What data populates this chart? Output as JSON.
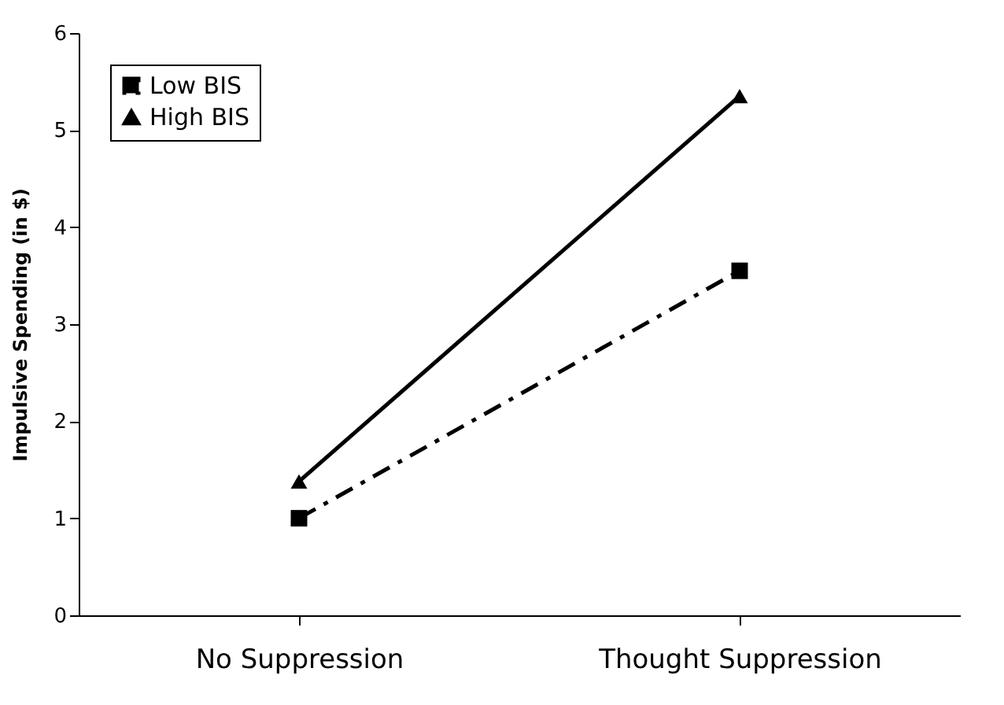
{
  "chart_data": {
    "type": "line",
    "ylabel": "Impulsive Spending (in $)",
    "categories": [
      "No Suppression",
      "Thought Suppression"
    ],
    "ylim": [
      0,
      6
    ],
    "yticks": [
      0,
      1,
      2,
      3,
      4,
      5,
      6
    ],
    "grid": false,
    "legend": "top left",
    "series": [
      {
        "name": "Low BIS",
        "color": "#000000",
        "values": [
          1.0,
          3.55
        ],
        "marker": "square",
        "line_style": "dashdot"
      },
      {
        "name": "High BIS",
        "color": "#000000",
        "values": [
          1.38,
          5.35
        ],
        "marker": "triangle",
        "line_style": "solid"
      }
    ]
  }
}
